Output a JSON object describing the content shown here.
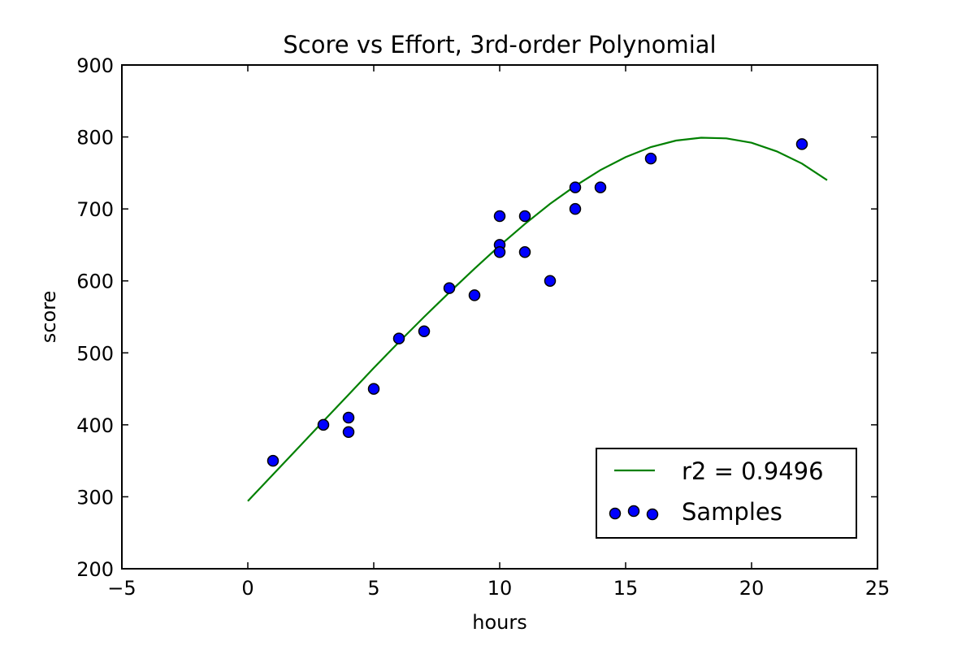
{
  "chart_data": {
    "type": "scatter",
    "title": "Score vs Effort, 3rd-order Polynomial",
    "xlabel": "hours",
    "ylabel": "score",
    "xlim": [
      -5,
      25
    ],
    "ylim": [
      200,
      900
    ],
    "xticks": [
      -5,
      0,
      5,
      10,
      15,
      20,
      25
    ],
    "xtick_labels": [
      "−5",
      "0",
      "5",
      "10",
      "15",
      "20",
      "25"
    ],
    "yticks": [
      200,
      300,
      400,
      500,
      600,
      700,
      800,
      900
    ],
    "ytick_labels": [
      "200",
      "300",
      "400",
      "500",
      "600",
      "700",
      "800",
      "900"
    ],
    "grid": false,
    "legend_position": "lower-right",
    "colors": {
      "fit_line": "#008000",
      "points": "#0000ff",
      "point_edge": "#000000"
    },
    "series": [
      {
        "name": "r2 = 0.9496",
        "kind": "line",
        "x": [
          0,
          1,
          2,
          3,
          4,
          5,
          6,
          7,
          8,
          9,
          10,
          11,
          12,
          13,
          14,
          15,
          16,
          17,
          18,
          19,
          20,
          21,
          22,
          23
        ],
        "y": [
          294,
          331,
          368,
          405,
          442,
          479,
          515,
          550,
          584,
          617,
          649,
          679,
          707,
          732,
          754,
          772,
          786,
          795,
          799,
          798,
          792,
          780,
          763,
          740
        ]
      },
      {
        "name": "Samples",
        "kind": "scatter",
        "x": [
          1,
          3,
          4,
          4,
          5,
          6,
          7,
          8,
          9,
          10,
          10,
          10,
          11,
          11,
          12,
          13,
          13,
          14,
          16,
          22
        ],
        "y": [
          350,
          400,
          410,
          390,
          450,
          520,
          530,
          590,
          580,
          690,
          650,
          640,
          690,
          640,
          600,
          730,
          700,
          730,
          770,
          790
        ]
      }
    ]
  }
}
